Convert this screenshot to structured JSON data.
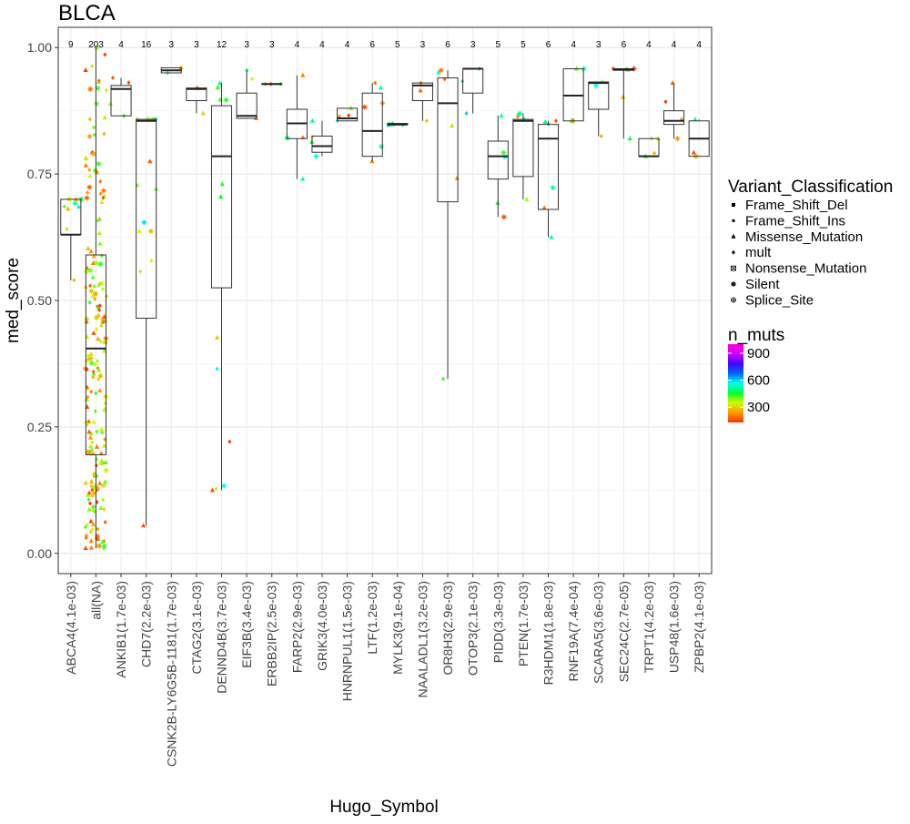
{
  "chart_data": {
    "type": "boxplot",
    "title": "BLCA",
    "xlabel": "Hugo_Symbol",
    "ylabel": "med_score",
    "ylim": [
      -0.04,
      1.04
    ],
    "yticks": [
      "0.00",
      "0.25",
      "0.50",
      "0.75",
      "1.00"
    ],
    "grid": true,
    "legend_position": "right",
    "categories": [
      {
        "label": "ABCA4(4.1e-03)",
        "n": "9",
        "q1": 0.63,
        "median": 0.63,
        "q3": 0.7,
        "wlo": 0.54,
        "whi": 0.7
      },
      {
        "label": "all(NA)",
        "n": "203",
        "q1": 0.195,
        "median": 0.405,
        "q3": 0.59,
        "wlo": 0.01,
        "whi": 1.0
      },
      {
        "label": "ANKIB1(1.7e-03)",
        "n": "4",
        "q1": 0.865,
        "median": 0.918,
        "q3": 0.925,
        "wlo": 0.865,
        "whi": 0.94
      },
      {
        "label": "CHD7(2.2e-03)",
        "n": "16",
        "q1": 0.465,
        "median": 0.855,
        "q3": 0.858,
        "wlo": 0.055,
        "whi": 0.858
      },
      {
        "label": "CSNK2B-LY6G5B-1181(1.7e-03)",
        "n": "3",
        "q1": 0.95,
        "median": 0.955,
        "q3": 0.96,
        "wlo": 0.95,
        "whi": 0.96
      },
      {
        "label": "CTAG2(3.1e-03)",
        "n": "3",
        "q1": 0.895,
        "median": 0.918,
        "q3": 0.92,
        "wlo": 0.87,
        "whi": 0.92
      },
      {
        "label": "DENND4B(3.7e-03)",
        "n": "12",
        "q1": 0.525,
        "median": 0.785,
        "q3": 0.885,
        "wlo": 0.125,
        "whi": 0.93
      },
      {
        "label": "EIF3B(3.4e-03)",
        "n": "3",
        "q1": 0.86,
        "median": 0.865,
        "q3": 0.91,
        "wlo": 0.86,
        "whi": 0.955
      },
      {
        "label": "ERBB2IP(2.5e-03)",
        "n": "3",
        "q1": 0.928,
        "median": 0.928,
        "q3": 0.928,
        "wlo": 0.928,
        "whi": 0.928
      },
      {
        "label": "FARP2(2.9e-03)",
        "n": "4",
        "q1": 0.82,
        "median": 0.85,
        "q3": 0.878,
        "wlo": 0.74,
        "whi": 0.945
      },
      {
        "label": "GRIK3(4.0e-03)",
        "n": "4",
        "q1": 0.793,
        "median": 0.805,
        "q3": 0.825,
        "wlo": 0.785,
        "whi": 0.855
      },
      {
        "label": "HNRNPUL1(1.5e-03)",
        "n": "4",
        "q1": 0.855,
        "median": 0.86,
        "q3": 0.88,
        "wlo": 0.855,
        "whi": 0.88
      },
      {
        "label": "LTF(1.2e-03)",
        "n": "6",
        "q1": 0.785,
        "median": 0.835,
        "q3": 0.91,
        "wlo": 0.775,
        "whi": 0.93
      },
      {
        "label": "MYLK3(9.1e-04)",
        "n": "5",
        "q1": 0.847,
        "median": 0.848,
        "q3": 0.85,
        "wlo": 0.847,
        "whi": 0.85
      },
      {
        "label": "NAALADL1(3.2e-03)",
        "n": "3",
        "q1": 0.895,
        "median": 0.925,
        "q3": 0.93,
        "wlo": 0.855,
        "whi": 0.93
      },
      {
        "label": "OR8H3(2.9e-03)",
        "n": "6",
        "q1": 0.695,
        "median": 0.89,
        "q3": 0.94,
        "wlo": 0.345,
        "whi": 0.955
      },
      {
        "label": "OTOP3(2.1e-03)",
        "n": "3",
        "q1": 0.91,
        "median": 0.958,
        "q3": 0.958,
        "wlo": 0.87,
        "whi": 0.958
      },
      {
        "label": "PIDD(3.3e-03)",
        "n": "5",
        "q1": 0.74,
        "median": 0.785,
        "q3": 0.815,
        "wlo": 0.665,
        "whi": 0.865
      },
      {
        "label": "PTEN(1.7e-03)",
        "n": "5",
        "q1": 0.745,
        "median": 0.855,
        "q3": 0.858,
        "wlo": 0.7,
        "whi": 0.87
      },
      {
        "label": "R3HDM1(1.8e-03)",
        "n": "6",
        "q1": 0.68,
        "median": 0.82,
        "q3": 0.848,
        "wlo": 0.625,
        "whi": 0.855
      },
      {
        "label": "RNF19A(7.4e-04)",
        "n": "4",
        "q1": 0.855,
        "median": 0.905,
        "q3": 0.958,
        "wlo": 0.855,
        "whi": 0.958
      },
      {
        "label": "SCARA5(3.6e-03)",
        "n": "3",
        "q1": 0.878,
        "median": 0.93,
        "q3": 0.932,
        "wlo": 0.825,
        "whi": 0.932
      },
      {
        "label": "SEC24C(2.7e-05)",
        "n": "6",
        "q1": 0.955,
        "median": 0.957,
        "q3": 0.958,
        "wlo": 0.82,
        "whi": 0.958
      },
      {
        "label": "TRPT1(4.2e-03)",
        "n": "4",
        "q1": 0.785,
        "median": 0.785,
        "q3": 0.82,
        "wlo": 0.785,
        "whi": 0.82
      },
      {
        "label": "USP48(1.6e-03)",
        "n": "4",
        "q1": 0.848,
        "median": 0.855,
        "q3": 0.875,
        "wlo": 0.82,
        "whi": 0.93
      },
      {
        "label": "ZPBP2(4.1e-03)",
        "n": "4",
        "q1": 0.785,
        "median": 0.82,
        "q3": 0.855,
        "wlo": 0.785,
        "whi": 0.858
      }
    ],
    "legend": {
      "shape_title": "Variant_Classification",
      "shape_items": [
        {
          "label": "Frame_Shift_Del",
          "shape": "square"
        },
        {
          "label": "Frame_Shift_Ins",
          "shape": "small-square"
        },
        {
          "label": "Missense_Mutation",
          "shape": "triangle"
        },
        {
          "label": "mult",
          "shape": "diamond"
        },
        {
          "label": "Nonsense_Mutation",
          "shape": "boxed-x"
        },
        {
          "label": "Silent",
          "shape": "asterisk"
        },
        {
          "label": "Splice_Site",
          "shape": "circle-plus"
        }
      ],
      "color_title": "n_muts",
      "color_ticks": [
        "900",
        "600",
        "300"
      ],
      "color_scale": [
        "#ff3300",
        "#ff9900",
        "#ccff00",
        "#00ff33",
        "#00ffee",
        "#0066ff",
        "#4400ff",
        "#cc00ff",
        "#ff00cc"
      ]
    }
  }
}
